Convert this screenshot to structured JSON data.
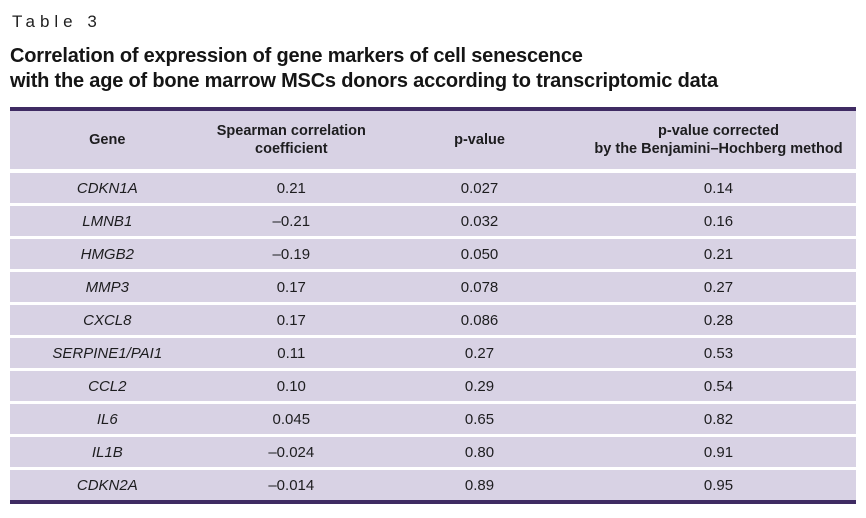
{
  "page": {
    "table_label": "Table 3",
    "title_line1": "Correlation of expression of gene markers of cell senescence",
    "title_line2": "with the age of bone marrow MSCs donors according to transcriptomic data"
  },
  "table": {
    "columns": [
      "Gene",
      "Spearman correlation\ncoefficient",
      "p-value",
      "p-value corrected\nby the Benjamini–Hochberg method"
    ],
    "rows": [
      {
        "gene": "CDKN1A",
        "spearman": "0.21",
        "p_value": "0.027",
        "p_adj": "0.14"
      },
      {
        "gene": "LMNB1",
        "spearman": "–0.21",
        "p_value": "0.032",
        "p_adj": "0.16"
      },
      {
        "gene": "HMGB2",
        "spearman": "–0.19",
        "p_value": "0.050",
        "p_adj": "0.21"
      },
      {
        "gene": "MMP3",
        "spearman": "0.17",
        "p_value": "0.078",
        "p_adj": "0.27"
      },
      {
        "gene": "CXCL8",
        "spearman": "0.17",
        "p_value": "0.086",
        "p_adj": "0.28"
      },
      {
        "gene": "SERPINE1/PAI1",
        "spearman": "0.11",
        "p_value": "0.27",
        "p_adj": "0.53"
      },
      {
        "gene": "CCL2",
        "spearman": "0.10",
        "p_value": "0.29",
        "p_adj": "0.54"
      },
      {
        "gene": "IL6",
        "spearman": "0.045",
        "p_value": "0.65",
        "p_adj": "0.82"
      },
      {
        "gene": "IL1B",
        "spearman": "–0.024",
        "p_value": "0.80",
        "p_adj": "0.91"
      },
      {
        "gene": "CDKN2A",
        "spearman": "–0.014",
        "p_value": "0.89",
        "p_adj": "0.95"
      }
    ],
    "colors": {
      "border": "#3f2b63",
      "row_background": "#d8d2e4",
      "text": "#1d1d1f"
    }
  }
}
